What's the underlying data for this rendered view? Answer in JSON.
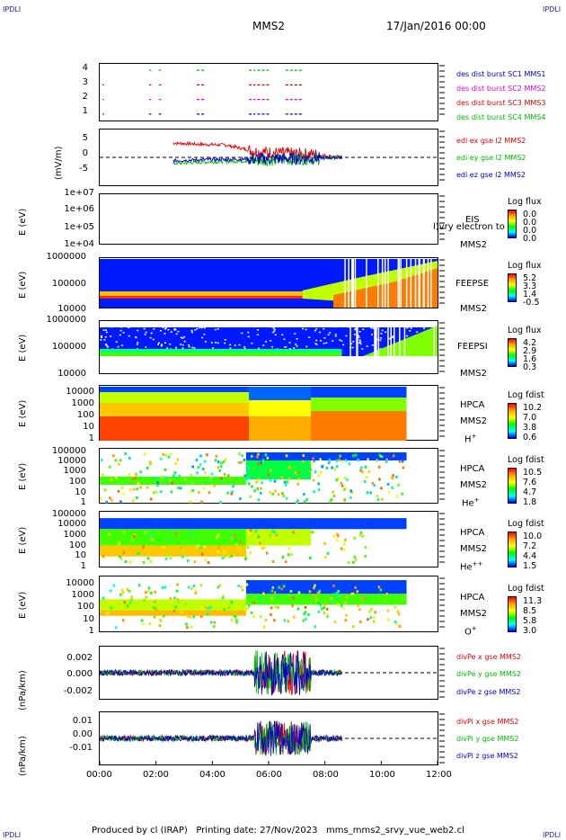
{
  "header": {
    "corner_tl": "IPDLI",
    "corner_tr": "IPDLI",
    "corner_bl": "IPDLI",
    "corner_br": "IPDLI",
    "mission": "MMS2",
    "date": "17/Jan/2016 00:00"
  },
  "footer": {
    "text": "Produced by cl (IRAP)   Printing date: 27/Nov/2023   mms_mms2_srvy_vue_web2.cl"
  },
  "x_axis": {
    "ticks": [
      "00:00",
      "02:00",
      "04:00",
      "06:00",
      "08:00",
      "10:00",
      "12:00"
    ],
    "range_hours": [
      0,
      12
    ]
  },
  "colors": {
    "mms1": "#0000cc",
    "mms2": "#dd00dd",
    "mms3": "#dd0000",
    "mms4": "#00bb00",
    "red": "#dd0000",
    "green": "#00bb00",
    "blue": "#0000cc"
  },
  "chart_data": [
    {
      "type": "scatter",
      "panel": "burst",
      "ylim": [
        0.5,
        4.5
      ],
      "y_ticks": [
        "4",
        "3",
        "2",
        "1"
      ],
      "series": [
        {
          "name": "des dist burst SC1 MMS1",
          "y": 1,
          "x_segments": [
            [
              0.1,
              0.12
            ],
            [
              1.75,
              1.8
            ],
            [
              2.1,
              2.15
            ],
            [
              3.45,
              3.7
            ],
            [
              5.3,
              5.5
            ],
            [
              5.6,
              6.0
            ],
            [
              6.6,
              7.2
            ]
          ]
        },
        {
          "name": "des dist burst SC2 MMS2",
          "y": 2,
          "x_segments": [
            [
              0.1,
              0.12
            ],
            [
              1.75,
              1.8
            ],
            [
              2.1,
              2.15
            ],
            [
              3.45,
              3.7
            ],
            [
              5.3,
              5.5
            ],
            [
              5.6,
              6.0
            ],
            [
              6.6,
              7.2
            ]
          ]
        },
        {
          "name": "des dist burst SC3 MMS3",
          "y": 3,
          "x_segments": [
            [
              0.1,
              0.12
            ],
            [
              1.75,
              1.8
            ],
            [
              2.1,
              2.15
            ],
            [
              3.45,
              3.7
            ],
            [
              5.3,
              5.5
            ],
            [
              5.6,
              6.0
            ],
            [
              6.6,
              7.2
            ]
          ]
        },
        {
          "name": "des dist burst SC4 MMS4",
          "y": 4,
          "x_segments": [
            [
              1.75,
              1.8
            ],
            [
              2.1,
              2.15
            ],
            [
              3.45,
              3.7
            ],
            [
              5.3,
              5.5
            ],
            [
              5.6,
              6.0
            ],
            [
              6.6,
              7.2
            ]
          ]
        }
      ]
    },
    {
      "type": "line",
      "panel": "efield",
      "ylabel": "(mV/m)",
      "ylim": [
        -7,
        7
      ],
      "y_ticks": [
        "5",
        "0",
        "-5"
      ],
      "x_range": [
        2.6,
        8.6
      ],
      "series": [
        {
          "name": "edi ex gse l2 MMS2",
          "mean": [
            [
              2.6,
              3.5
            ],
            [
              3.5,
              3.2
            ],
            [
              4.5,
              3.0
            ],
            [
              5.5,
              1.5
            ],
            [
              6.5,
              1.0
            ],
            [
              7.5,
              0.8
            ],
            [
              8.6,
              0.0
            ]
          ]
        },
        {
          "name": "edi ey gse l2 MMS2",
          "mean": [
            [
              2.6,
              -1.5
            ],
            [
              3.5,
              -1.2
            ],
            [
              4.5,
              -1.0
            ],
            [
              5.5,
              -0.8
            ],
            [
              6.5,
              -0.5
            ],
            [
              7.5,
              -0.3
            ],
            [
              8.6,
              0.0
            ]
          ]
        },
        {
          "name": "edi ez gse l2 MMS2",
          "mean": [
            [
              2.6,
              -0.8
            ],
            [
              3.5,
              -0.6
            ],
            [
              4.5,
              -0.5
            ],
            [
              5.5,
              -0.4
            ],
            [
              6.5,
              -0.3
            ],
            [
              7.5,
              -0.2
            ],
            [
              8.6,
              0.0
            ]
          ]
        }
      ]
    },
    {
      "type": "heatmap",
      "panel": "eis",
      "ylabel": "E (eV)",
      "y_ticks": [
        "1e+07",
        "1e+06",
        "1e+05",
        "1e+04"
      ],
      "instrument": "EIS",
      "label2": "MMS2",
      "overlay_text": "l)vry electron to",
      "colorbar_title": "Log flux",
      "colorbar_ticks": [
        "0.0",
        "0.0",
        "0.0",
        "0.0"
      ]
    },
    {
      "type": "heatmap",
      "panel": "feepse",
      "ylabel": "E (eV)",
      "y_ticks": [
        "1000000",
        "100000",
        "10000"
      ],
      "instrument": "FEEPSE",
      "label2": "MMS2",
      "colorbar_title": "Log flux",
      "colorbar_ticks": [
        "5.2",
        "3.3",
        "1.4",
        "-0.5"
      ]
    },
    {
      "type": "heatmap",
      "panel": "feepsi",
      "ylabel": "E (eV)",
      "y_ticks": [
        "1000000",
        "100000",
        "10000"
      ],
      "instrument": "FEEPSI",
      "label2": "MMS2",
      "colorbar_title": "Log flux",
      "colorbar_ticks": [
        "4.2",
        "2.9",
        "1.6",
        "0.3"
      ]
    },
    {
      "type": "heatmap",
      "panel": "hpca_h",
      "ylabel": "E (eV)",
      "y_ticks": [
        "10000",
        "1000",
        "100",
        "10",
        "1"
      ],
      "instrument": "HPCA",
      "label2": "MMS2",
      "species": "H",
      "charge": "+",
      "colorbar_title": "Log fdist",
      "colorbar_ticks": [
        "10.2",
        "7.0",
        "3.8",
        "0.6"
      ]
    },
    {
      "type": "heatmap",
      "panel": "hpca_he1",
      "ylabel": "E (eV)",
      "y_ticks": [
        "100000",
        "10000",
        "1000",
        "100",
        "10",
        "1"
      ],
      "instrument": "HPCA",
      "label2": "MMS2",
      "species": "He",
      "charge": "+",
      "colorbar_title": "Log fdist",
      "colorbar_ticks": [
        "10.5",
        "7.6",
        "4.7",
        "1.8"
      ]
    },
    {
      "type": "heatmap",
      "panel": "hpca_he2",
      "ylabel": "E (eV)",
      "y_ticks": [
        "100000",
        "10000",
        "1000",
        "100",
        "10",
        "1"
      ],
      "instrument": "HPCA",
      "label2": "MMS2",
      "species": "He",
      "charge": "++",
      "colorbar_title": "Log fdist",
      "colorbar_ticks": [
        "10.0",
        "7.2",
        "4.4",
        "1.5"
      ]
    },
    {
      "type": "heatmap",
      "panel": "hpca_o",
      "ylabel": "E (eV)",
      "y_ticks": [
        "10000",
        "1000",
        "100",
        "10",
        "1"
      ],
      "instrument": "HPCA",
      "label2": "MMS2",
      "species": "O",
      "charge": "+",
      "colorbar_title": "Log fdist",
      "colorbar_ticks": [
        "11.3",
        "8.5",
        "5.8",
        "3.0"
      ]
    },
    {
      "type": "line",
      "panel": "divpe",
      "ylabel": "(nPa/km)",
      "ylim": [
        -0.003,
        0.003
      ],
      "y_ticks": [
        "0.002",
        "0.000",
        "-0.002"
      ],
      "series": [
        {
          "name": "divPe x gse MMS2"
        },
        {
          "name": "divPe y gse MMS2"
        },
        {
          "name": "divPe z gse MMS2"
        }
      ]
    },
    {
      "type": "line",
      "panel": "divpi",
      "ylabel": "(nPa/km)",
      "ylim": [
        -0.015,
        0.015
      ],
      "y_ticks": [
        "0.01",
        "0.00",
        "-0.01"
      ],
      "series": [
        {
          "name": "divPi x gse MMS2"
        },
        {
          "name": "divPi y gse MMS2"
        },
        {
          "name": "divPi z gse MMS2"
        }
      ]
    }
  ]
}
